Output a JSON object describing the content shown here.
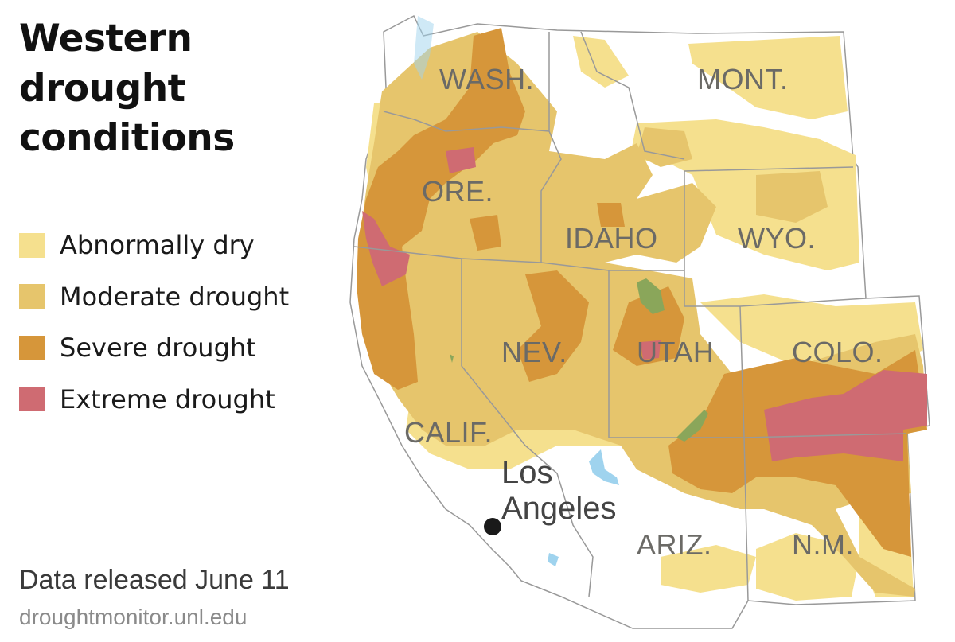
{
  "title": "Western drought conditions",
  "legend": [
    {
      "label": "Abnormally dry",
      "color": "#f5e08e"
    },
    {
      "label": "Moderate drought",
      "color": "#e6c56c"
    },
    {
      "label": "Severe drought",
      "color": "#d6963a"
    },
    {
      "label": "Extreme drought",
      "color": "#cf6b72"
    }
  ],
  "states": {
    "wash": "WASH.",
    "mont": "MONT.",
    "ore": "ORE.",
    "idaho": "IDAHO",
    "wyo": "WYO.",
    "nev": "NEV.",
    "utah": "UTAH",
    "colo": "COLO.",
    "calif": "CALIF.",
    "ariz": "ARIZ.",
    "nm": "N.M."
  },
  "city": {
    "line1": "Los",
    "line2": "Angeles"
  },
  "note": "Data released June 11",
  "source": "droughtmonitor.unl.edu",
  "colors": {
    "land": "#ffffff",
    "border": "#999999",
    "water": "#9fd3ee",
    "lake_green": "#8aa65a",
    "marker": "#1a1a1a"
  }
}
